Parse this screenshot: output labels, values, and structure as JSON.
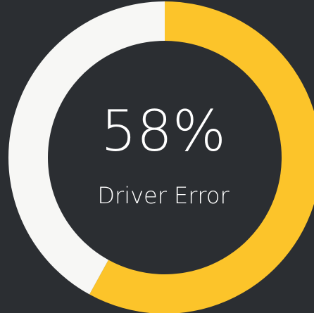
{
  "chart_data": {
    "type": "donut",
    "categories": [
      "Driver Error",
      null
    ],
    "values": [
      58,
      42
    ],
    "value_labels": [
      "58%",
      null
    ],
    "colors": [
      "#fcc42a",
      "#f7f7f5"
    ]
  }
}
